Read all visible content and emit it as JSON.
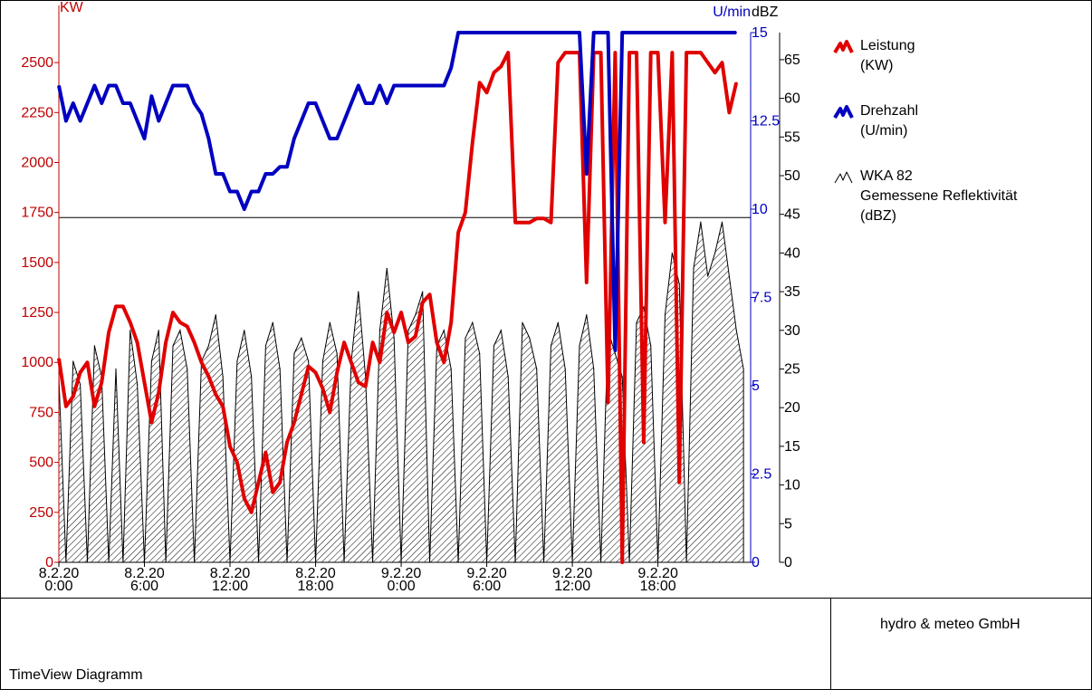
{
  "chart_data": {
    "type": "line",
    "axes": {
      "left": {
        "unit": "KW",
        "ticks": [
          "0",
          "250",
          "500",
          "750",
          "1000",
          "1250",
          "1500",
          "1750",
          "2000",
          "2250",
          "2500"
        ],
        "ylim": [
          0,
          2650
        ],
        "color": "#c00000"
      },
      "right_rpm": {
        "unit": "U/min",
        "ticks": [
          "0",
          "2.5",
          "5",
          "7.5",
          "10",
          "12.5",
          "15"
        ],
        "ylim": [
          0,
          15
        ],
        "color": "#0000c0"
      },
      "right_dbz": {
        "unit": "dBZ",
        "ticks": [
          "0",
          "5",
          "10",
          "15",
          "20",
          "25",
          "30",
          "35",
          "40",
          "45",
          "50",
          "55",
          "60",
          "65"
        ],
        "ylim": [
          0,
          68.5
        ],
        "color": "#000000"
      }
    },
    "x_ticks": [
      {
        "date": "8.2.20",
        "time": "0:00",
        "hour": 0
      },
      {
        "date": "8.2.20",
        "time": "6:00",
        "hour": 6
      },
      {
        "date": "8.2.20",
        "time": "12:00",
        "hour": 12
      },
      {
        "date": "8.2.20",
        "time": "18:00",
        "hour": 18
      },
      {
        "date": "9.2.20",
        "time": "0:00",
        "hour": 24
      },
      {
        "date": "9.2.20",
        "time": "6:00",
        "hour": 30
      },
      {
        "date": "9.2.20",
        "time": "12:00",
        "hour": 36
      },
      {
        "date": "9.2.20",
        "time": "18:00",
        "hour": 42
      }
    ],
    "xlim_hours": [
      0,
      48.5
    ],
    "reference_line_kw": 1725,
    "series": [
      {
        "name": "Leistung",
        "unit": "(KW)",
        "axis": "left",
        "color": "#e00000",
        "points": [
          [
            0,
            1020
          ],
          [
            0.5,
            780
          ],
          [
            1,
            830
          ],
          [
            1.5,
            950
          ],
          [
            2,
            1000
          ],
          [
            2.5,
            780
          ],
          [
            3,
            900
          ],
          [
            3.5,
            1150
          ],
          [
            4,
            1280
          ],
          [
            4.5,
            1280
          ],
          [
            5,
            1200
          ],
          [
            5.5,
            1100
          ],
          [
            6,
            900
          ],
          [
            6.5,
            700
          ],
          [
            7,
            850
          ],
          [
            7.5,
            1100
          ],
          [
            8,
            1250
          ],
          [
            8.5,
            1200
          ],
          [
            9,
            1180
          ],
          [
            9.5,
            1100
          ],
          [
            10,
            1000
          ],
          [
            10.5,
            930
          ],
          [
            11,
            840
          ],
          [
            11.5,
            780
          ],
          [
            12,
            580
          ],
          [
            12.5,
            500
          ],
          [
            13,
            320
          ],
          [
            13.5,
            250
          ],
          [
            14,
            400
          ],
          [
            14.5,
            550
          ],
          [
            15,
            350
          ],
          [
            15.5,
            400
          ],
          [
            16,
            600
          ],
          [
            16.5,
            700
          ],
          [
            17,
            840
          ],
          [
            17.5,
            980
          ],
          [
            18,
            950
          ],
          [
            18.5,
            870
          ],
          [
            19,
            750
          ],
          [
            19.5,
            950
          ],
          [
            20,
            1100
          ],
          [
            20.5,
            1000
          ],
          [
            21,
            900
          ],
          [
            21.5,
            880
          ],
          [
            22,
            1100
          ],
          [
            22.5,
            1000
          ],
          [
            23,
            1250
          ],
          [
            23.5,
            1150
          ],
          [
            24,
            1250
          ],
          [
            24.5,
            1100
          ],
          [
            25,
            1130
          ],
          [
            25.5,
            1300
          ],
          [
            26,
            1340
          ],
          [
            26.5,
            1100
          ],
          [
            27,
            1000
          ],
          [
            27.5,
            1200
          ],
          [
            28,
            1650
          ],
          [
            28.5,
            1750
          ],
          [
            29,
            2100
          ],
          [
            29.5,
            2400
          ],
          [
            30,
            2350
          ],
          [
            30.5,
            2450
          ],
          [
            31,
            2480
          ],
          [
            31.5,
            2550
          ],
          [
            32,
            1700
          ],
          [
            32.5,
            1700
          ],
          [
            33,
            1700
          ],
          [
            33.5,
            1720
          ],
          [
            34,
            1720
          ],
          [
            34.5,
            1700
          ],
          [
            35,
            2500
          ],
          [
            35.5,
            2550
          ],
          [
            36,
            2550
          ],
          [
            36.5,
            2550
          ],
          [
            37,
            1400
          ],
          [
            37.5,
            2550
          ],
          [
            38,
            2550
          ],
          [
            38.5,
            800
          ],
          [
            39,
            2550
          ],
          [
            39.5,
            0
          ],
          [
            40,
            2550
          ],
          [
            40.5,
            2550
          ],
          [
            41,
            600
          ],
          [
            41.5,
            2550
          ],
          [
            42,
            2550
          ],
          [
            42.5,
            1700
          ],
          [
            43,
            2550
          ],
          [
            43.5,
            400
          ],
          [
            44,
            2550
          ],
          [
            44.5,
            2550
          ],
          [
            45,
            2550
          ],
          [
            45.5,
            2500
          ],
          [
            46,
            2450
          ],
          [
            46.5,
            2500
          ],
          [
            47,
            2250
          ],
          [
            47.5,
            2400
          ]
        ]
      },
      {
        "name": "Drehzahl",
        "unit": "(U/min)",
        "axis": "right_rpm",
        "color": "#0000c0",
        "points": [
          [
            0,
            13.5
          ],
          [
            0.5,
            12.5
          ],
          [
            1,
            13
          ],
          [
            1.5,
            12.5
          ],
          [
            2,
            13
          ],
          [
            2.5,
            13.5
          ],
          [
            3,
            13
          ],
          [
            3.5,
            13.5
          ],
          [
            4,
            13.5
          ],
          [
            4.5,
            13
          ],
          [
            5,
            13
          ],
          [
            5.5,
            12.5
          ],
          [
            6,
            12
          ],
          [
            6.5,
            13.2
          ],
          [
            7,
            12.5
          ],
          [
            7.5,
            13
          ],
          [
            8,
            13.5
          ],
          [
            8.5,
            13.5
          ],
          [
            9,
            13.5
          ],
          [
            9.5,
            13
          ],
          [
            10,
            12.7
          ],
          [
            10.5,
            12
          ],
          [
            11,
            11
          ],
          [
            11.5,
            11
          ],
          [
            12,
            10.5
          ],
          [
            12.5,
            10.5
          ],
          [
            13,
            10
          ],
          [
            13.5,
            10.5
          ],
          [
            14,
            10.5
          ],
          [
            14.5,
            11
          ],
          [
            15,
            11
          ],
          [
            15.5,
            11.2
          ],
          [
            16,
            11.2
          ],
          [
            16.5,
            12
          ],
          [
            17,
            12.5
          ],
          [
            17.5,
            13
          ],
          [
            18,
            13
          ],
          [
            18.5,
            12.5
          ],
          [
            19,
            12
          ],
          [
            19.5,
            12
          ],
          [
            20,
            12.5
          ],
          [
            20.5,
            13
          ],
          [
            21,
            13.5
          ],
          [
            21.5,
            13
          ],
          [
            22,
            13
          ],
          [
            22.5,
            13.5
          ],
          [
            23,
            13
          ],
          [
            23.5,
            13.5
          ],
          [
            24,
            13.5
          ],
          [
            24.5,
            13.5
          ],
          [
            25,
            13.5
          ],
          [
            25.5,
            13.5
          ],
          [
            26,
            13.5
          ],
          [
            26.5,
            13.5
          ],
          [
            27,
            13.5
          ],
          [
            27.5,
            14
          ],
          [
            28,
            15
          ],
          [
            28.5,
            15
          ],
          [
            29,
            15
          ],
          [
            29.5,
            15
          ],
          [
            30,
            15
          ],
          [
            30.5,
            15
          ],
          [
            31,
            15
          ],
          [
            31.5,
            15
          ],
          [
            32,
            15
          ],
          [
            32.5,
            15
          ],
          [
            33,
            15
          ],
          [
            33.5,
            15
          ],
          [
            34,
            15
          ],
          [
            34.5,
            15
          ],
          [
            35,
            15
          ],
          [
            35.5,
            15
          ],
          [
            36,
            15
          ],
          [
            36.5,
            15
          ],
          [
            37,
            11
          ],
          [
            37.5,
            15
          ],
          [
            38,
            15
          ],
          [
            38.5,
            15
          ],
          [
            39,
            6
          ],
          [
            39.5,
            15
          ],
          [
            40,
            15
          ],
          [
            40.5,
            15
          ],
          [
            41,
            15
          ],
          [
            41.5,
            15
          ],
          [
            42,
            15
          ],
          [
            42.5,
            15
          ],
          [
            43,
            15
          ],
          [
            43.5,
            15
          ],
          [
            44,
            15
          ],
          [
            44.5,
            15
          ],
          [
            45,
            15
          ],
          [
            45.5,
            15
          ],
          [
            46,
            15
          ],
          [
            46.5,
            15
          ],
          [
            47,
            15
          ],
          [
            47.5,
            15
          ]
        ]
      },
      {
        "name": "WKA 82",
        "label": "Gemessene Reflektivität",
        "unit": "(dBZ)",
        "axis": "right_dbz",
        "type": "area",
        "color": "#000000",
        "points": [
          [
            0,
            24
          ],
          [
            0.5,
            0
          ],
          [
            1,
            26
          ],
          [
            1.5,
            23
          ],
          [
            2,
            0
          ],
          [
            2.5,
            28
          ],
          [
            3,
            24
          ],
          [
            3.5,
            0
          ],
          [
            4,
            25
          ],
          [
            4.5,
            0
          ],
          [
            5,
            30
          ],
          [
            5.5,
            23
          ],
          [
            6,
            0
          ],
          [
            6.5,
            26
          ],
          [
            7,
            30
          ],
          [
            7.5,
            0
          ],
          [
            8,
            28
          ],
          [
            8.5,
            30
          ],
          [
            9,
            25
          ],
          [
            9.5,
            0
          ],
          [
            10,
            26
          ],
          [
            10.5,
            28
          ],
          [
            11,
            32
          ],
          [
            11.5,
            24
          ],
          [
            12,
            0
          ],
          [
            12.5,
            26
          ],
          [
            13,
            30
          ],
          [
            13.5,
            24
          ],
          [
            14,
            0
          ],
          [
            14.5,
            28
          ],
          [
            15,
            31
          ],
          [
            15.5,
            25
          ],
          [
            16,
            0
          ],
          [
            16.5,
            27
          ],
          [
            17,
            29
          ],
          [
            17.5,
            26
          ],
          [
            18,
            0
          ],
          [
            18.5,
            26
          ],
          [
            19,
            31
          ],
          [
            19.5,
            27
          ],
          [
            20,
            0
          ],
          [
            20.5,
            26
          ],
          [
            21,
            35
          ],
          [
            21.5,
            24
          ],
          [
            22,
            0
          ],
          [
            22.5,
            30
          ],
          [
            23,
            38
          ],
          [
            23.5,
            29
          ],
          [
            24,
            0
          ],
          [
            24.5,
            30
          ],
          [
            25,
            32
          ],
          [
            25.5,
            35
          ],
          [
            26,
            0
          ],
          [
            26.5,
            28
          ],
          [
            27,
            30
          ],
          [
            27.5,
            25
          ],
          [
            28,
            0
          ],
          [
            28.5,
            29
          ],
          [
            29,
            31
          ],
          [
            29.5,
            27
          ],
          [
            30,
            0
          ],
          [
            30.5,
            28
          ],
          [
            31,
            30
          ],
          [
            31.5,
            24
          ],
          [
            32,
            0
          ],
          [
            32.5,
            31
          ],
          [
            33,
            29
          ],
          [
            33.5,
            25
          ],
          [
            34,
            0
          ],
          [
            34.5,
            28
          ],
          [
            35,
            31
          ],
          [
            35.5,
            25
          ],
          [
            36,
            0
          ],
          [
            36.5,
            28
          ],
          [
            37,
            32
          ],
          [
            37.5,
            25
          ],
          [
            38,
            0
          ],
          [
            38.5,
            30
          ],
          [
            39,
            27
          ],
          [
            39.5,
            24
          ],
          [
            40,
            0
          ],
          [
            40.5,
            31
          ],
          [
            41,
            33
          ],
          [
            41.5,
            28
          ],
          [
            42,
            0
          ],
          [
            42.5,
            32
          ],
          [
            43,
            40
          ],
          [
            43.5,
            36
          ],
          [
            44,
            0
          ],
          [
            44.5,
            38
          ],
          [
            45,
            44
          ],
          [
            45.5,
            37
          ],
          [
            46,
            40
          ],
          [
            46.5,
            44
          ],
          [
            47,
            37
          ],
          [
            47.5,
            30
          ],
          [
            48,
            25
          ]
        ]
      }
    ]
  },
  "legend": [
    {
      "line1": "Leistung",
      "line2": "(KW)"
    },
    {
      "line1": "Drehzahl",
      "line2": "(U/min)"
    },
    {
      "line1": "WKA 82",
      "line2": "Gemessene Reflektivität",
      "line3": "(dBZ)"
    }
  ],
  "footer": {
    "company": "hydro & meteo GmbH",
    "title": "TimeView Diagramm"
  }
}
